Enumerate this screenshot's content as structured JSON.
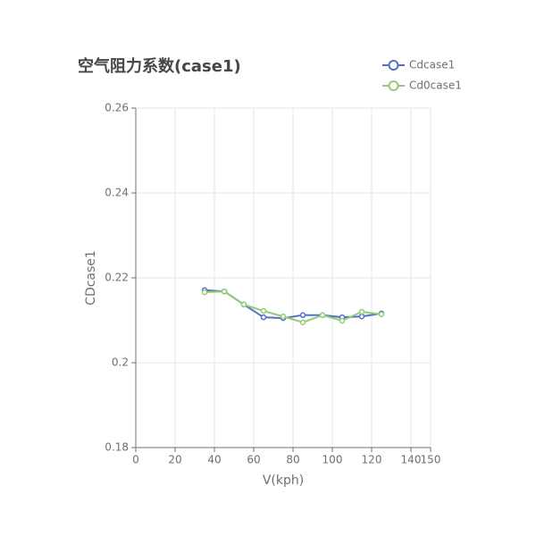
{
  "chart_data": {
    "type": "line",
    "title": "空气阻力系数(case1)",
    "x_label": "V(kph)",
    "y_label": "CDcase1",
    "x": [
      35,
      45,
      55,
      65,
      75,
      85,
      95,
      105,
      115,
      125
    ],
    "series": [
      {
        "name": "Cdcase1",
        "color": "#5470c6",
        "values": [
          0.2171,
          0.2168,
          0.2137,
          0.2107,
          0.2105,
          0.2112,
          0.2112,
          0.2107,
          0.2109,
          0.2116
        ]
      },
      {
        "name": "Cd0case1",
        "color": "#91cc75",
        "values": [
          0.2166,
          0.2168,
          0.2137,
          0.2122,
          0.2109,
          0.2095,
          0.2112,
          0.2099,
          0.212,
          0.2114
        ]
      }
    ],
    "xlim": [
      0,
      150
    ],
    "xticks": [
      0,
      20,
      40,
      60,
      80,
      100,
      120,
      140,
      150
    ],
    "ylim": [
      0.18,
      0.26
    ],
    "yticks": [
      0.18,
      0.2,
      0.22,
      0.24,
      0.26
    ],
    "grid": true
  }
}
